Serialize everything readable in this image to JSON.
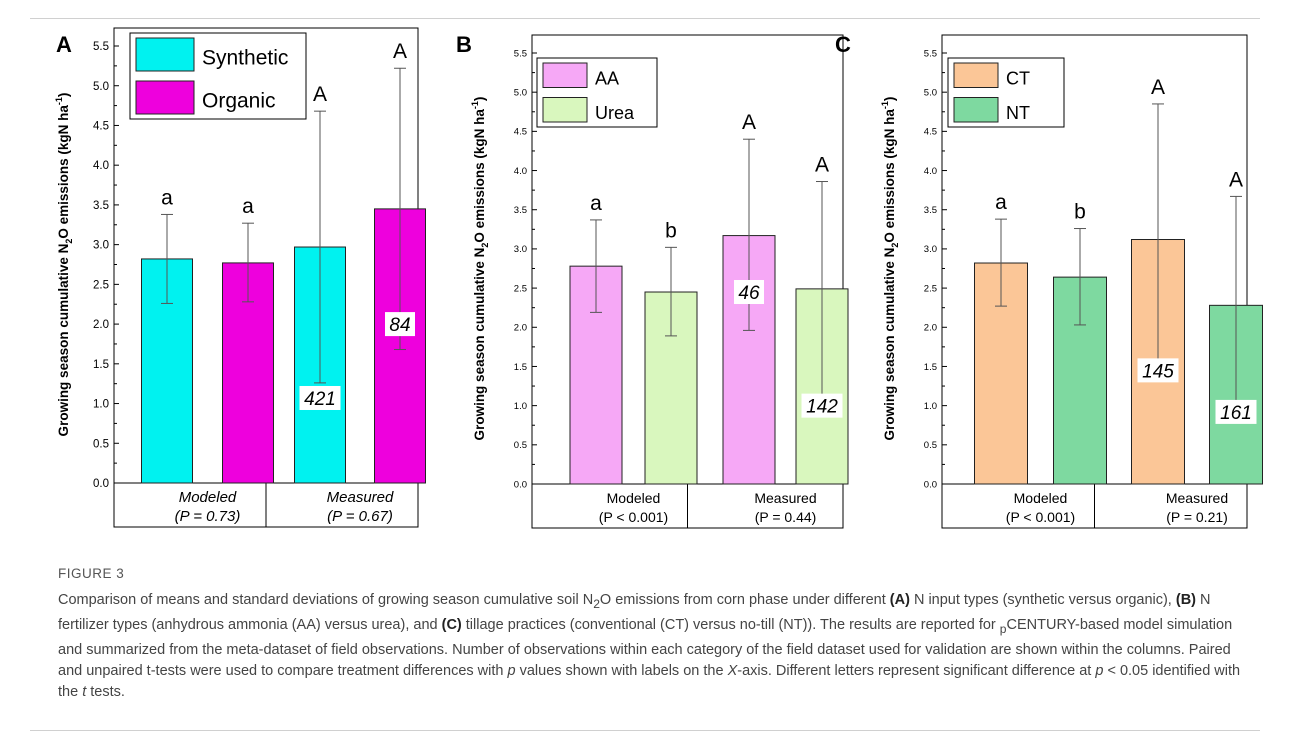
{
  "chart_data": [
    {
      "type": "bar",
      "panel_letter": "A",
      "ylabel_parts": [
        "Growing season cumulative N",
        "2",
        "O emissions (kgN ha",
        "-1",
        ")"
      ],
      "ylim": [
        0,
        5.5
      ],
      "yticks": [
        "0.0",
        "0.5",
        "1.0",
        "1.5",
        "2.0",
        "2.5",
        "3.0",
        "3.5",
        "4.0",
        "4.5",
        "5.0",
        "5.5"
      ],
      "categories": [
        "Modeled",
        "Measured"
      ],
      "category_pvalues": [
        "(P = 0.73)",
        "(P = 0.67)"
      ],
      "category_italic": true,
      "legend_position": "top-left",
      "series": [
        {
          "name": "Synthetic",
          "color": "#00f2f0",
          "values": [
            2.82,
            2.97
          ],
          "sd_low": [
            2.26,
            1.26
          ],
          "sd_high": [
            3.38,
            4.68
          ],
          "letters": [
            "a",
            "A"
          ],
          "counts": [
            "",
            "421"
          ]
        },
        {
          "name": "Organic",
          "color": "#ee00dd",
          "values": [
            2.77,
            3.45
          ],
          "sd_low": [
            2.28,
            1.68
          ],
          "sd_high": [
            3.27,
            5.22
          ],
          "letters": [
            "a",
            "A"
          ],
          "counts": [
            "",
            "84"
          ]
        }
      ]
    },
    {
      "type": "bar",
      "panel_letter": "B",
      "ylabel_parts": [
        "Growing season cumulative N",
        "2",
        "O emissions (kgN ha",
        "-1",
        ")"
      ],
      "ylim": [
        0,
        5.5
      ],
      "yticks": [
        "0.0",
        "0.5",
        "1.0",
        "1.5",
        "2.0",
        "2.5",
        "3.0",
        "3.5",
        "4.0",
        "4.5",
        "5.0",
        "5.5"
      ],
      "categories": [
        "Modeled",
        "Measured"
      ],
      "category_pvalues": [
        "(P < 0.001)",
        "(P = 0.44)"
      ],
      "category_italic": false,
      "legend_position": "top-left",
      "series": [
        {
          "name": "AA",
          "color": "#f6a8f6",
          "values": [
            2.78,
            3.17
          ],
          "sd_low": [
            2.19,
            1.96
          ],
          "sd_high": [
            3.37,
            4.4
          ],
          "letters": [
            "a",
            "A"
          ],
          "counts": [
            "",
            "46"
          ]
        },
        {
          "name": "Urea",
          "color": "#d9f7be",
          "values": [
            2.45,
            2.49
          ],
          "sd_low": [
            1.89,
            1.13
          ],
          "sd_high": [
            3.02,
            3.86
          ],
          "letters": [
            "b",
            "A"
          ],
          "counts": [
            "",
            "142"
          ]
        }
      ]
    },
    {
      "type": "bar",
      "panel_letter": "C",
      "ylabel_parts": [
        "Growing season cumulative N",
        "2",
        "O emissions (kgN ha",
        "-1",
        ")"
      ],
      "ylim": [
        0,
        5.5
      ],
      "yticks": [
        "0.0",
        "0.5",
        "1.0",
        "1.5",
        "2.0",
        "2.5",
        "3.0",
        "3.5",
        "4.0",
        "4.5",
        "5.0",
        "5.5"
      ],
      "categories": [
        "Modeled",
        "Measured"
      ],
      "category_pvalues": [
        "(P < 0.001)",
        "(P = 0.21)"
      ],
      "category_italic": false,
      "legend_position": "top-left",
      "series": [
        {
          "name": "CT",
          "color": "#fbc697",
          "values": [
            2.82,
            3.12
          ],
          "sd_low": [
            2.27,
            1.4
          ],
          "sd_high": [
            3.38,
            4.85
          ],
          "letters": [
            "a",
            "A"
          ],
          "counts": [
            "",
            "145"
          ]
        },
        {
          "name": "NT",
          "color": "#7ed9a0",
          "values": [
            2.64,
            2.28
          ],
          "sd_low": [
            2.03,
            0.9
          ],
          "sd_high": [
            3.26,
            3.67
          ],
          "letters": [
            "b",
            "A"
          ],
          "counts": [
            "",
            "161"
          ]
        }
      ]
    }
  ],
  "caption": {
    "figure_label": "FIGURE 3",
    "t1": "Comparison of means and standard deviations of growing season cumulative soil N",
    "t1_sub": "2",
    "t2": "O emissions from corn phase under different ",
    "l_a": "(A)",
    "t3": " N input types (synthetic versus organic), ",
    "l_b": "(B)",
    "t4": " N fertilizer types (anhydrous ammonia (AA) versus urea), and ",
    "l_c": "(C)",
    "t5": " tillage practices (conventional (CT) versus no-till (NT)). The results are reported for ",
    "t5_sub": "p",
    "t6": "CENTURY-based model simulation and summarized from the meta-dataset of field observations. Number of observations within each category of the field dataset used for validation are shown within the columns. Paired and unpaired t-tests were used to compare treatment differences with ",
    "t6_i": "p",
    "t7": " values shown with labels on the ",
    "t7_i": "X",
    "t8": "-axis. Different letters represent significant difference at ",
    "t8_i": "p",
    "t9": " < 0.05 identified with the ",
    "t9_i": "t",
    "t10": " tests."
  }
}
